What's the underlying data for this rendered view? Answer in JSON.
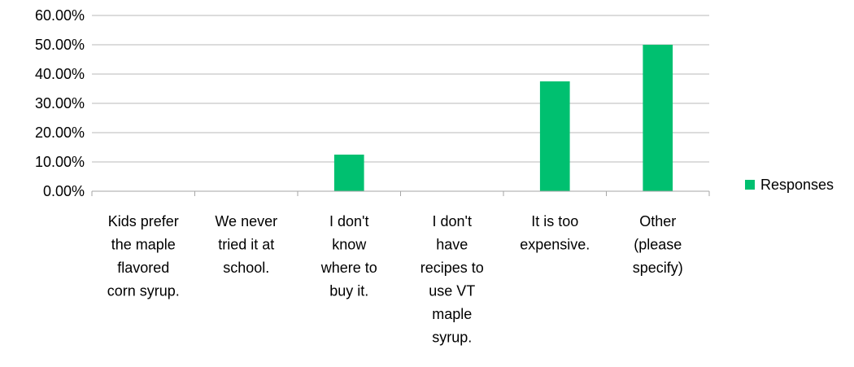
{
  "chart_data": {
    "type": "bar",
    "title": "",
    "xlabel": "",
    "ylabel": "",
    "categories": [
      "Kids prefer the maple flavored corn syrup.",
      "We never tried it at school.",
      "I don't know where to buy it.",
      "I don't have recipes to use VT maple syrup.",
      "It is too expensive.",
      "Other (please specify)"
    ],
    "category_lines": [
      [
        "Kids prefer",
        "the maple",
        "flavored",
        "corn syrup."
      ],
      [
        "We never",
        "tried it at",
        "school."
      ],
      [
        "I don't",
        "know",
        "where to",
        "buy it."
      ],
      [
        "I don't",
        "have",
        "recipes to",
        "use VT",
        "maple",
        "syrup."
      ],
      [
        "It is too",
        "expensive."
      ],
      [
        "Other",
        "(please",
        "specify)"
      ]
    ],
    "series": [
      {
        "name": "Responses",
        "values": [
          0.0,
          0.0,
          12.5,
          0.0,
          37.5,
          50.0
        ],
        "color": "#00c070"
      }
    ],
    "ylim": [
      0,
      60
    ],
    "yticks": [
      0,
      10,
      20,
      30,
      40,
      50,
      60
    ],
    "ytick_labels": [
      "0.00%",
      "10.00%",
      "20.00%",
      "30.00%",
      "40.00%",
      "50.00%",
      "60.00%"
    ],
    "grid": true,
    "legend": {
      "position": "right",
      "entries": [
        "Responses"
      ]
    },
    "colors": {
      "bar": "#00c070",
      "grid": "#b8b8b8",
      "axis": "#a6a6a6"
    }
  }
}
